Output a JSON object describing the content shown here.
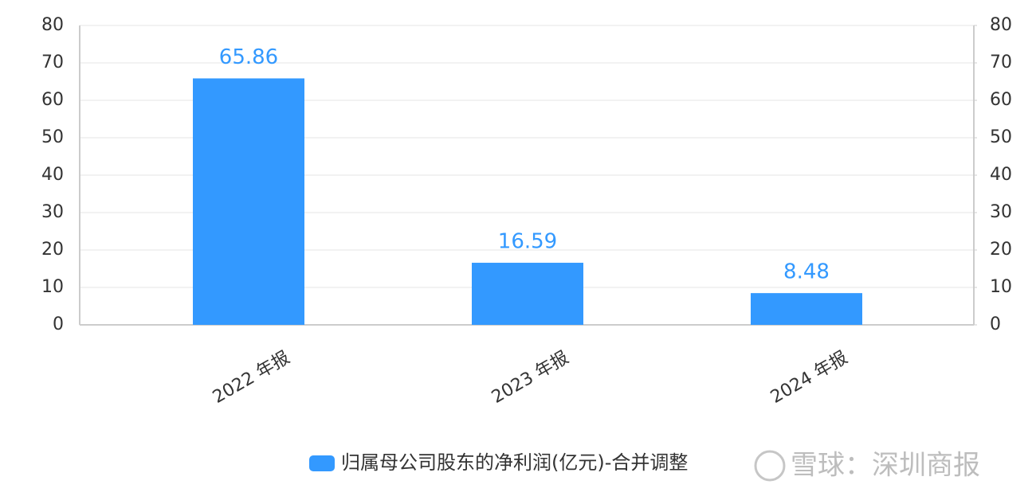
{
  "chart_data": {
    "type": "bar",
    "categories": [
      "2022 年报",
      "2023 年报",
      "2024 年报"
    ],
    "series": [
      {
        "name": "归属母公司股东的净利润(亿元)-合并调整",
        "color": "#3399ff",
        "values": [
          65.86,
          16.59,
          8.48
        ]
      }
    ],
    "ylim": [
      0,
      80
    ],
    "yticks": [
      0,
      10,
      20,
      30,
      40,
      50,
      60,
      70,
      80
    ],
    "y2lim": [
      0,
      80
    ],
    "y2ticks": [
      0,
      10,
      20,
      30,
      40,
      50,
      60,
      70,
      80
    ],
    "grid": true
  },
  "watermark": "雪球：深圳商报"
}
